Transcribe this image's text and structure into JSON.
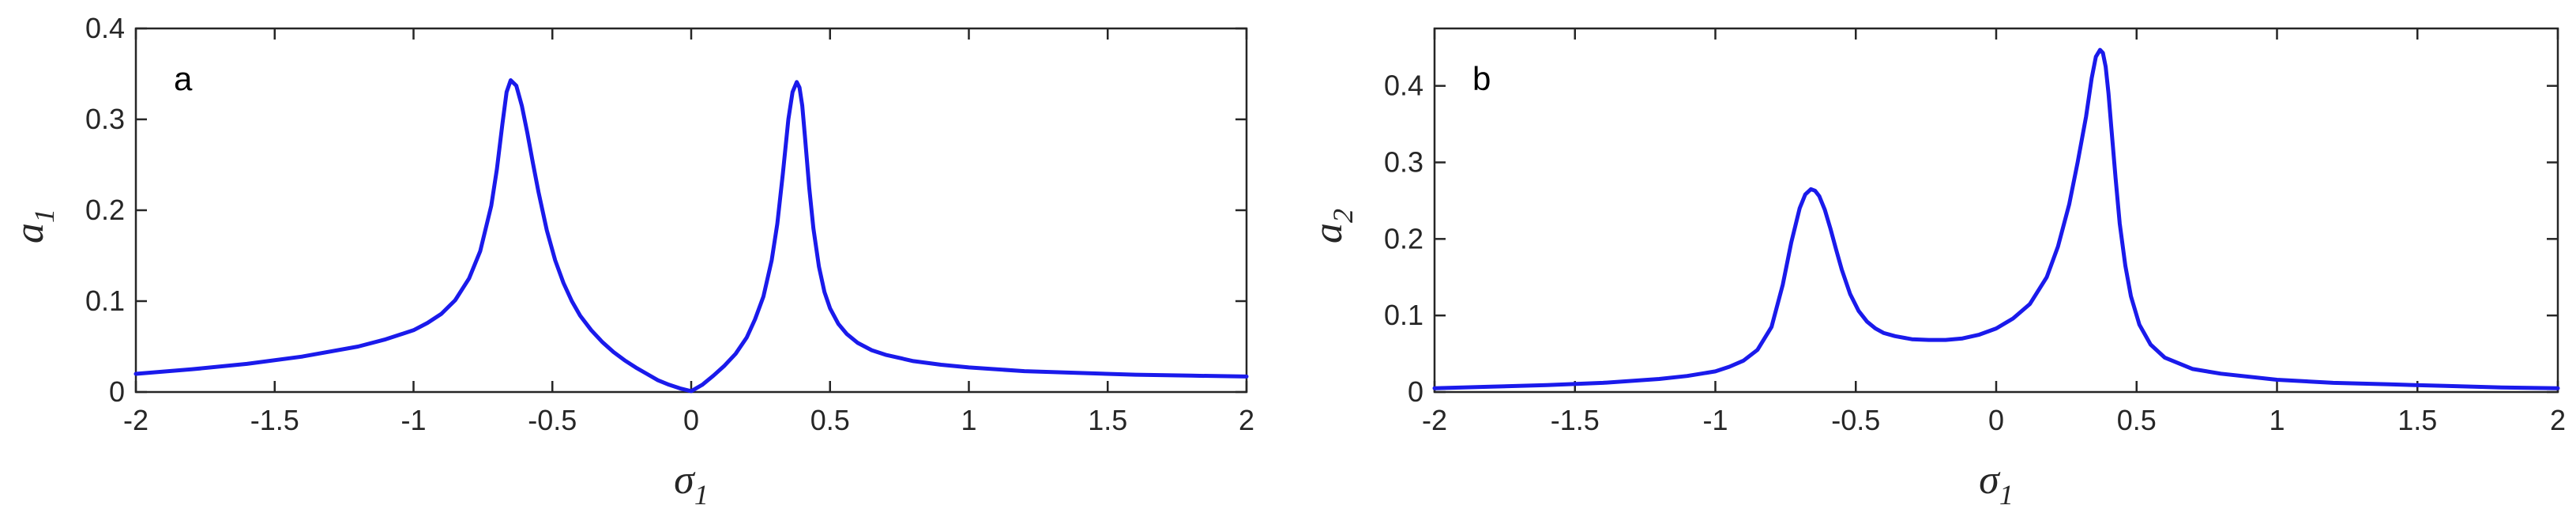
{
  "chart_data": [
    {
      "type": "line",
      "panel_label": "a",
      "xlabel": "σ",
      "xlabel_sub": "1",
      "ylabel": "a",
      "ylabel_sub": "1",
      "xlim": [
        -2,
        2
      ],
      "ylim": [
        0,
        0.4
      ],
      "xticks": [
        "-2",
        "-1.5",
        "-1",
        "-0.5",
        "0",
        "0.5",
        "1",
        "1.5",
        "2"
      ],
      "yticks": [
        "0",
        "0.1",
        "0.2",
        "0.3",
        "0.4"
      ],
      "grid": false,
      "color": "#1a1aeb",
      "series": [
        {
          "x": [
            -2.0,
            -1.8,
            -1.6,
            -1.4,
            -1.2,
            -1.1,
            -1.0,
            -0.95,
            -0.9,
            -0.85,
            -0.8,
            -0.76,
            -0.72,
            -0.7,
            -0.68,
            -0.665,
            -0.65,
            -0.63,
            -0.61,
            -0.59,
            -0.57,
            -0.55,
            -0.52,
            -0.49,
            -0.46,
            -0.43,
            -0.4,
            -0.36,
            -0.32,
            -0.28,
            -0.24,
            -0.2,
            -0.16,
            -0.12,
            -0.08,
            -0.04,
            0.0,
            0.04,
            0.08,
            0.12,
            0.16,
            0.2,
            0.23,
            0.26,
            0.29,
            0.31,
            0.33,
            0.35,
            0.365,
            0.38,
            0.39,
            0.4,
            0.41,
            0.425,
            0.44,
            0.46,
            0.48,
            0.5,
            0.53,
            0.56,
            0.6,
            0.65,
            0.7,
            0.8,
            0.9,
            1.0,
            1.2,
            1.4,
            1.6,
            1.8,
            2.0
          ],
          "y": [
            0.02,
            0.025,
            0.031,
            0.039,
            0.05,
            0.058,
            0.068,
            0.076,
            0.086,
            0.101,
            0.125,
            0.155,
            0.205,
            0.245,
            0.295,
            0.33,
            0.343,
            0.337,
            0.315,
            0.285,
            0.252,
            0.22,
            0.178,
            0.145,
            0.12,
            0.1,
            0.084,
            0.068,
            0.055,
            0.044,
            0.035,
            0.027,
            0.02,
            0.013,
            0.008,
            0.004,
            0.001,
            0.008,
            0.018,
            0.029,
            0.042,
            0.06,
            0.08,
            0.105,
            0.145,
            0.185,
            0.24,
            0.3,
            0.33,
            0.341,
            0.335,
            0.315,
            0.28,
            0.225,
            0.18,
            0.138,
            0.11,
            0.092,
            0.075,
            0.064,
            0.054,
            0.046,
            0.041,
            0.034,
            0.03,
            0.027,
            0.023,
            0.021,
            0.019,
            0.018,
            0.017
          ]
        }
      ]
    },
    {
      "type": "line",
      "panel_label": "b",
      "xlabel": "σ",
      "xlabel_sub": "1",
      "ylabel": "a",
      "ylabel_sub": "2",
      "xlim": [
        -2,
        2
      ],
      "ylim": [
        0,
        0.475
      ],
      "xticks": [
        "-2",
        "-1.5",
        "-1",
        "-0.5",
        "0",
        "0.5",
        "1",
        "1.5",
        "2"
      ],
      "yticks": [
        "0",
        "0.1",
        "0.2",
        "0.3",
        "0.4"
      ],
      "grid": false,
      "color": "#1a1aeb",
      "series": [
        {
          "x": [
            -2.0,
            -1.8,
            -1.6,
            -1.4,
            -1.2,
            -1.1,
            -1.0,
            -0.95,
            -0.9,
            -0.85,
            -0.8,
            -0.76,
            -0.73,
            -0.7,
            -0.68,
            -0.66,
            -0.645,
            -0.63,
            -0.61,
            -0.59,
            -0.57,
            -0.55,
            -0.52,
            -0.49,
            -0.46,
            -0.43,
            -0.4,
            -0.36,
            -0.3,
            -0.24,
            -0.18,
            -0.12,
            -0.06,
            0.0,
            0.06,
            0.12,
            0.18,
            0.22,
            0.26,
            0.29,
            0.32,
            0.34,
            0.355,
            0.37,
            0.38,
            0.39,
            0.4,
            0.41,
            0.425,
            0.44,
            0.46,
            0.48,
            0.51,
            0.55,
            0.6,
            0.7,
            0.8,
            1.0,
            1.2,
            1.4,
            1.6,
            1.8,
            2.0
          ],
          "y": [
            0.005,
            0.007,
            0.009,
            0.012,
            0.017,
            0.021,
            0.027,
            0.033,
            0.041,
            0.055,
            0.085,
            0.14,
            0.195,
            0.24,
            0.258,
            0.265,
            0.263,
            0.256,
            0.238,
            0.213,
            0.186,
            0.16,
            0.128,
            0.106,
            0.092,
            0.083,
            0.077,
            0.073,
            0.069,
            0.068,
            0.068,
            0.07,
            0.075,
            0.083,
            0.096,
            0.115,
            0.15,
            0.19,
            0.245,
            0.3,
            0.36,
            0.41,
            0.438,
            0.447,
            0.443,
            0.425,
            0.39,
            0.345,
            0.28,
            0.22,
            0.165,
            0.125,
            0.088,
            0.062,
            0.045,
            0.03,
            0.024,
            0.016,
            0.012,
            0.01,
            0.008,
            0.006,
            0.005
          ]
        }
      ]
    }
  ]
}
